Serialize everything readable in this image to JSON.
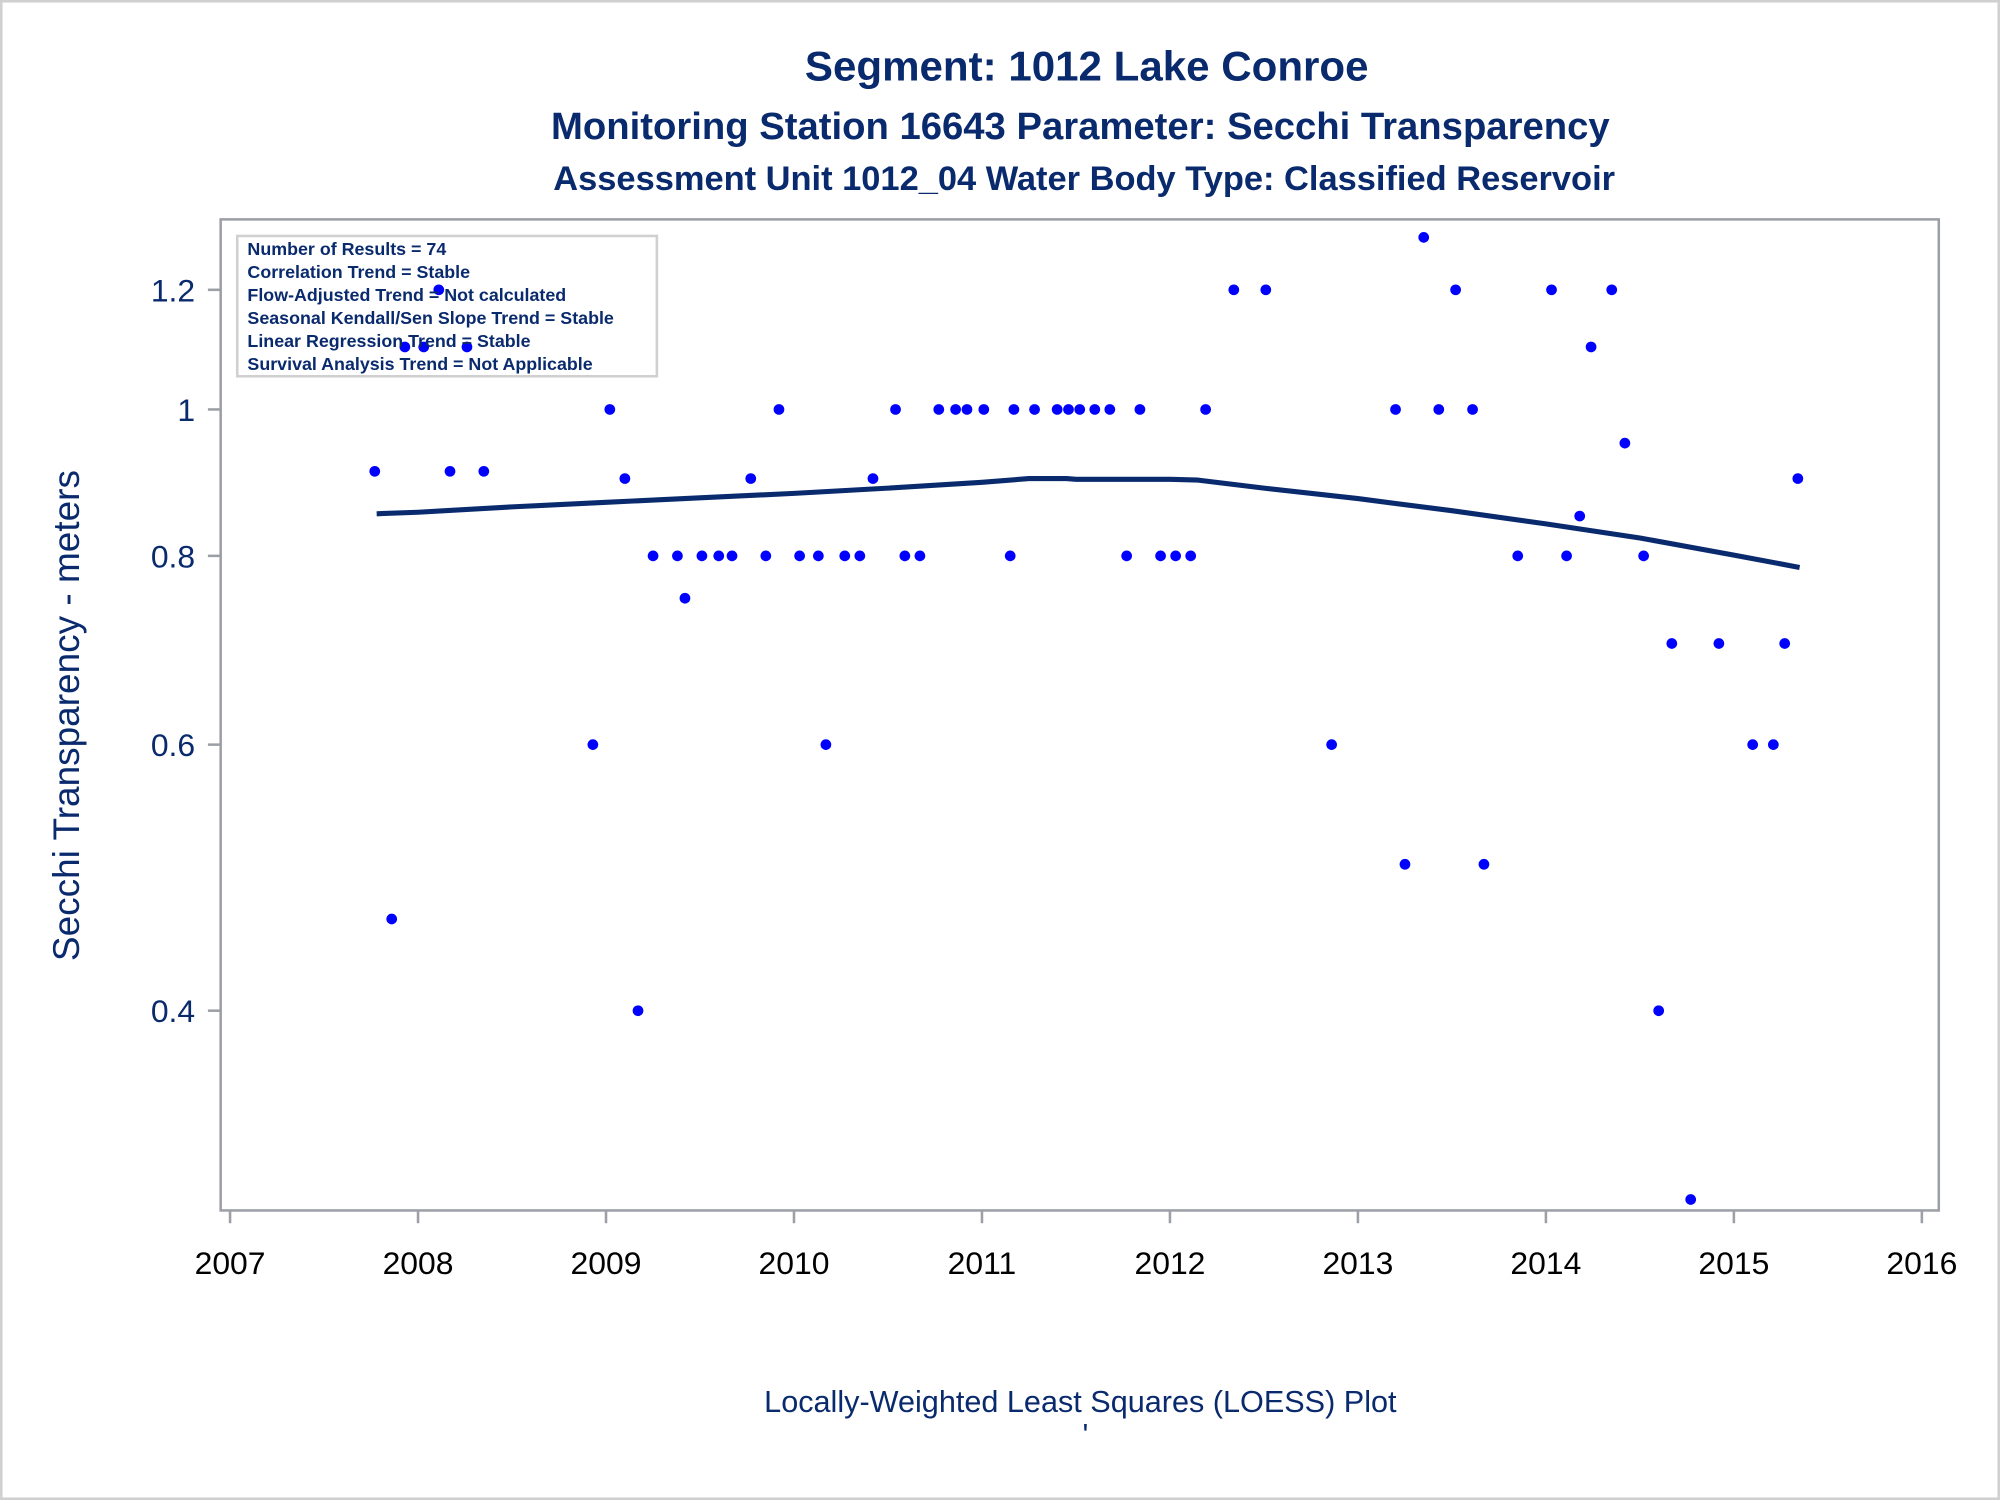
{
  "titles": {
    "line1": "Segment: 1012  Lake Conroe",
    "line2": "Monitoring Station 16643 Parameter: Secchi Transparency",
    "line3": "Assessment Unit 1012_04   Water Body Type: Classified Reservoir"
  },
  "footnote": "Locally-Weighted Least Squares (LOESS) Plot",
  "footnote_mark": "'",
  "stats_box": [
    "Number of Results = 74",
    "Correlation Trend = Stable",
    "Flow-Adjusted Trend = Not calculated",
    "Seasonal Kendall/Sen Slope Trend = Stable",
    "Linear Regression Trend = Stable",
    "Survival Analysis Trend = Not Applicable"
  ],
  "colors": {
    "points": "#0000ff",
    "loess": "#0a2a6e",
    "text": "#0a2a6e",
    "frame": "#9ca0a6"
  },
  "chart_data": {
    "type": "scatter",
    "title": "Segment: 1012  Lake Conroe",
    "subtitle": "Monitoring Station 16643 Parameter: Secchi Transparency",
    "xlabel": "",
    "ylabel": "Secchi Transparency - meters",
    "yscale": "log",
    "xlim": [
      2006.95,
      2016.09
    ],
    "ylim": [
      0.295,
      1.336
    ],
    "xticks": [
      2007,
      2008,
      2009,
      2010,
      2011,
      2012,
      2013,
      2014,
      2015,
      2016
    ],
    "yticks": [
      0.4,
      0.6,
      0.8,
      1.0,
      1.2
    ],
    "ytick_labels": [
      "0.4",
      "0.6",
      "0.8",
      "1",
      "1.2"
    ],
    "grid": false,
    "legend": "none",
    "series": [
      {
        "name": "Secchi Transparency",
        "type": "scatter",
        "points": [
          [
            2007.77,
            0.91
          ],
          [
            2007.86,
            0.46
          ],
          [
            2007.93,
            1.1
          ],
          [
            2008.03,
            1.1
          ],
          [
            2008.11,
            1.2
          ],
          [
            2008.17,
            0.91
          ],
          [
            2008.26,
            1.1
          ],
          [
            2008.35,
            0.91
          ],
          [
            2008.93,
            0.6
          ],
          [
            2009.02,
            1.0
          ],
          [
            2009.1,
            0.9
          ],
          [
            2009.17,
            0.4
          ],
          [
            2009.25,
            0.8
          ],
          [
            2009.38,
            0.8
          ],
          [
            2009.42,
            0.75
          ],
          [
            2009.51,
            0.8
          ],
          [
            2009.6,
            0.8
          ],
          [
            2009.67,
            0.8
          ],
          [
            2009.77,
            0.9
          ],
          [
            2009.85,
            0.8
          ],
          [
            2009.92,
            1.0
          ],
          [
            2010.03,
            0.8
          ],
          [
            2010.13,
            0.8
          ],
          [
            2010.17,
            0.6
          ],
          [
            2010.27,
            0.8
          ],
          [
            2010.35,
            0.8
          ],
          [
            2010.42,
            0.9
          ],
          [
            2010.54,
            1.0
          ],
          [
            2010.59,
            0.8
          ],
          [
            2010.67,
            0.8
          ],
          [
            2010.77,
            1.0
          ],
          [
            2010.86,
            1.0
          ],
          [
            2010.92,
            1.0
          ],
          [
            2011.01,
            1.0
          ],
          [
            2011.15,
            0.8
          ],
          [
            2011.17,
            1.0
          ],
          [
            2011.28,
            1.0
          ],
          [
            2011.4,
            1.0
          ],
          [
            2011.46,
            1.0
          ],
          [
            2011.52,
            1.0
          ],
          [
            2011.6,
            1.0
          ],
          [
            2011.68,
            1.0
          ],
          [
            2011.77,
            0.8
          ],
          [
            2011.84,
            1.0
          ],
          [
            2011.95,
            0.8
          ],
          [
            2012.03,
            0.8
          ],
          [
            2012.11,
            0.8
          ],
          [
            2012.19,
            1.0
          ],
          [
            2012.34,
            1.2
          ],
          [
            2012.51,
            1.2
          ],
          [
            2012.86,
            0.6
          ],
          [
            2013.2,
            1.0
          ],
          [
            2013.25,
            0.5
          ],
          [
            2013.35,
            1.3
          ],
          [
            2013.43,
            1.0
          ],
          [
            2013.52,
            1.2
          ],
          [
            2013.61,
            1.0
          ],
          [
            2013.67,
            0.5
          ],
          [
            2013.85,
            0.8
          ],
          [
            2014.03,
            1.2
          ],
          [
            2014.11,
            0.8
          ],
          [
            2014.18,
            0.85
          ],
          [
            2014.24,
            1.1
          ],
          [
            2014.35,
            1.2
          ],
          [
            2014.42,
            0.95
          ],
          [
            2014.52,
            0.8
          ],
          [
            2014.6,
            0.4
          ],
          [
            2014.67,
            0.7
          ],
          [
            2014.77,
            0.3
          ],
          [
            2014.92,
            0.7
          ],
          [
            2015.1,
            0.6
          ],
          [
            2015.21,
            0.6
          ],
          [
            2015.27,
            0.7
          ],
          [
            2015.34,
            0.9
          ]
        ]
      },
      {
        "name": "LOESS fit",
        "type": "line",
        "points": [
          [
            2007.78,
            0.853
          ],
          [
            2008.0,
            0.855
          ],
          [
            2008.5,
            0.862
          ],
          [
            2009.0,
            0.868
          ],
          [
            2009.5,
            0.874
          ],
          [
            2010.0,
            0.88
          ],
          [
            2010.5,
            0.887
          ],
          [
            2011.0,
            0.895
          ],
          [
            2011.25,
            0.9
          ],
          [
            2011.45,
            0.9
          ],
          [
            2011.5,
            0.899
          ],
          [
            2012.0,
            0.899
          ],
          [
            2012.15,
            0.898
          ],
          [
            2012.5,
            0.887
          ],
          [
            2013.0,
            0.873
          ],
          [
            2013.5,
            0.857
          ],
          [
            2014.0,
            0.84
          ],
          [
            2014.5,
            0.822
          ],
          [
            2015.0,
            0.801
          ],
          [
            2015.35,
            0.786
          ]
        ]
      }
    ]
  }
}
